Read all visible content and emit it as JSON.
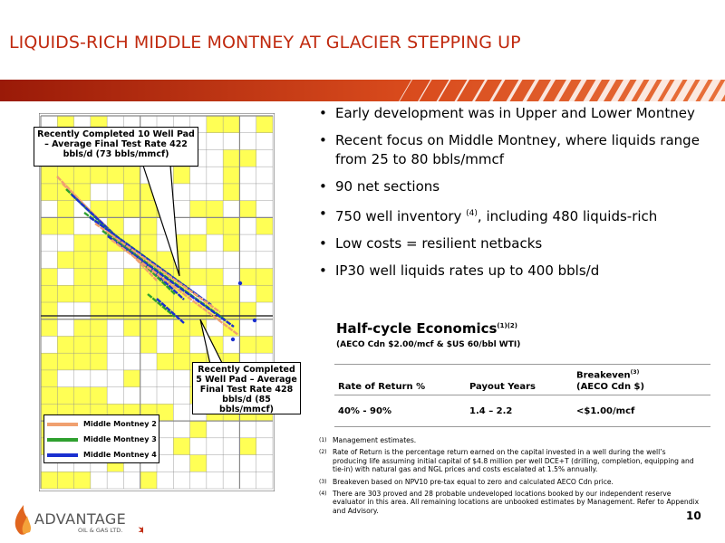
{
  "slide": {
    "title": "LIQUIDS-RICH MIDDLE MONTNEY AT GLACIER STEPPING UP",
    "page_number": "10",
    "accent_color": "#c0290e"
  },
  "bullets": [
    "Early development was in Upper and Lower Montney",
    "Recent focus on Middle Montney, where liquids range from 25 to 80 bbls/mmcf",
    "90 net sections",
    "750 well inventory",
    "(4)",
    ", including 480 liquids-rich",
    "Low costs = resilient netbacks",
    "IP30 well liquids rates up to 400 bbls/d"
  ],
  "economics": {
    "title": "Half-cycle Economics",
    "title_notes": "(1)(2)",
    "subtitle": "(AECO Cdn $2.00/mcf & $US 60/bbl WTI)",
    "headers": [
      "Rate of Return %",
      "Payout Years",
      "Breakeven",
      "(3)",
      "(AECO Cdn $)"
    ],
    "row": [
      "40% - 90%",
      "1.4 – 2.2",
      "<$1.00/mcf"
    ]
  },
  "notes": [
    {
      "num": "(1)",
      "text": "Management estimates."
    },
    {
      "num": "(2)",
      "text": "Rate of Return is the percentage return earned on the capital invested in a well during the well’s producing life assuming initial capital of $4.8 million per well DCE+T (drilling, completion, equipping and tie-in) with natural gas and NGL prices and costs escalated at 1.5% annually."
    },
    {
      "num": "(3)",
      "text": "Breakeven based on NPV10 pre-tax equal to zero and calculated AECO Cdn price."
    },
    {
      "num": "(4)",
      "text": "There are 303 proved and 28 probable undeveloped locations booked by our independent reserve evaluator in this area. All remaining locations are unbooked estimates by Management. Refer to Appendix and Advisory."
    }
  ],
  "map": {
    "callout_top": "Recently Completed 10 Well Pad – Average Final Test Rate 422 bbls/d (73 bbls/mmcf)",
    "callout_bottom": "Recently Completed 5 Well Pad – Average Final Test Rate 428 bbls/d (85 bbls/mmcf)",
    "legend": [
      {
        "label": "Middle Montney 2",
        "color": "#f0a070"
      },
      {
        "label": "Middle Montney 3",
        "color": "#2fa02f"
      },
      {
        "label": "Middle Montney 4",
        "color": "#1a2fd0"
      }
    ],
    "land_color": "#ffff55"
  },
  "logo": {
    "name": "ADVANTAGE",
    "sub": "OIL & GAS LTD."
  }
}
